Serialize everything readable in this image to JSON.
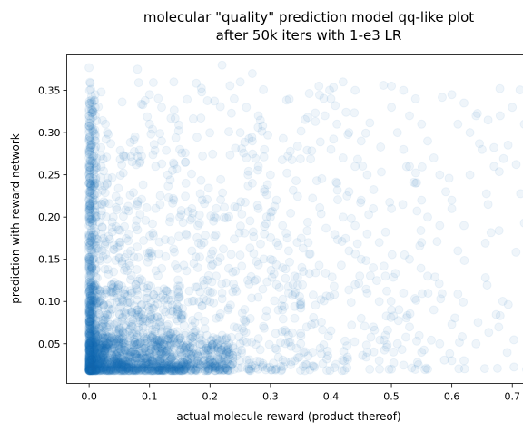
{
  "chart_data": {
    "type": "scatter",
    "title_lines": [
      "molecular \"quality\" prediction model qq-like plot",
      "after 50k iters with 1-e3 LR"
    ],
    "xlabel": "actual molecule reward (product thereof)",
    "ylabel": "prediction with reward network",
    "xlim": [
      -0.037,
      0.765
    ],
    "ylim": [
      0.003,
      0.392
    ],
    "x_ticks": [
      0.0,
      0.1,
      0.2,
      0.3,
      0.4,
      0.5,
      0.6,
      0.7
    ],
    "x_tick_labels": [
      "0.0",
      "0.1",
      "0.2",
      "0.3",
      "0.4",
      "0.5",
      "0.6",
      "0.7"
    ],
    "y_ticks": [
      0.05,
      0.1,
      0.15,
      0.2,
      0.25,
      0.3,
      0.35
    ],
    "y_tick_labels": [
      "0.05",
      "0.10",
      "0.15",
      "0.20",
      "0.25",
      "0.30",
      "0.35"
    ],
    "grid": false,
    "marker_color": "#1f77b4",
    "marker_alpha": 0.07,
    "points": [
      [
        0.0,
        0.377
      ],
      [
        0.0,
        0.32
      ],
      [
        0.0,
        0.3
      ],
      [
        0.0,
        0.29
      ],
      [
        0.0,
        0.28
      ],
      [
        0.0,
        0.27
      ],
      [
        0.0,
        0.26
      ],
      [
        0.0,
        0.25
      ],
      [
        0.0,
        0.24
      ],
      [
        0.0,
        0.23
      ],
      [
        0.0,
        0.22
      ],
      [
        0.0,
        0.21
      ],
      [
        0.0,
        0.2
      ],
      [
        0.0,
        0.19
      ],
      [
        0.0,
        0.18
      ],
      [
        0.0,
        0.17
      ],
      [
        0.0,
        0.16
      ],
      [
        0.0,
        0.15
      ],
      [
        0.0,
        0.14
      ],
      [
        0.0,
        0.13
      ],
      [
        0.0,
        0.12
      ],
      [
        0.0,
        0.11
      ],
      [
        0.0,
        0.1
      ],
      [
        0.0,
        0.09
      ],
      [
        0.0,
        0.08
      ],
      [
        0.0,
        0.07
      ],
      [
        0.0,
        0.06
      ],
      [
        0.0,
        0.05
      ],
      [
        0.01,
        0.345
      ],
      [
        0.01,
        0.33
      ],
      [
        0.02,
        0.348
      ],
      [
        0.03,
        0.3
      ],
      [
        0.02,
        0.26
      ],
      [
        0.03,
        0.24
      ],
      [
        0.01,
        0.22
      ],
      [
        0.04,
        0.2
      ],
      [
        0.02,
        0.18
      ],
      [
        0.05,
        0.17
      ],
      [
        0.03,
        0.15
      ],
      [
        0.06,
        0.14
      ],
      [
        0.04,
        0.12
      ],
      [
        0.07,
        0.11
      ],
      [
        0.05,
        0.1
      ],
      [
        0.08,
        0.09
      ],
      [
        0.06,
        0.085
      ],
      [
        0.09,
        0.08
      ],
      [
        0.1,
        0.075
      ],
      [
        0.11,
        0.07
      ],
      [
        0.12,
        0.065
      ],
      [
        0.13,
        0.06
      ],
      [
        0.14,
        0.055
      ],
      [
        0.15,
        0.05
      ],
      [
        0.16,
        0.045
      ],
      [
        0.17,
        0.04
      ],
      [
        0.18,
        0.035
      ],
      [
        0.19,
        0.03
      ],
      [
        0.2,
        0.025
      ],
      [
        0.22,
        0.02
      ],
      [
        0.08,
        0.375
      ],
      [
        0.1,
        0.345
      ],
      [
        0.12,
        0.33
      ],
      [
        0.14,
        0.36
      ],
      [
        0.1,
        0.31
      ],
      [
        0.12,
        0.29
      ],
      [
        0.15,
        0.28
      ],
      [
        0.11,
        0.26
      ],
      [
        0.13,
        0.25
      ],
      [
        0.16,
        0.24
      ],
      [
        0.14,
        0.22
      ],
      [
        0.17,
        0.21
      ],
      [
        0.15,
        0.2
      ],
      [
        0.18,
        0.19
      ],
      [
        0.16,
        0.18
      ],
      [
        0.19,
        0.17
      ],
      [
        0.17,
        0.16
      ],
      [
        0.2,
        0.15
      ],
      [
        0.18,
        0.14
      ],
      [
        0.21,
        0.13
      ],
      [
        0.19,
        0.12
      ],
      [
        0.22,
        0.11
      ],
      [
        0.2,
        0.1
      ],
      [
        0.23,
        0.09
      ],
      [
        0.21,
        0.08
      ],
      [
        0.24,
        0.07
      ],
      [
        0.22,
        0.06
      ],
      [
        0.25,
        0.05
      ],
      [
        0.23,
        0.04
      ],
      [
        0.22,
        0.38
      ],
      [
        0.25,
        0.36
      ],
      [
        0.27,
        0.37
      ],
      [
        0.24,
        0.34
      ],
      [
        0.26,
        0.33
      ],
      [
        0.28,
        0.32
      ],
      [
        0.25,
        0.3
      ],
      [
        0.27,
        0.29
      ],
      [
        0.29,
        0.28
      ],
      [
        0.26,
        0.27
      ],
      [
        0.28,
        0.26
      ],
      [
        0.3,
        0.25
      ],
      [
        0.27,
        0.24
      ],
      [
        0.29,
        0.23
      ],
      [
        0.31,
        0.22
      ],
      [
        0.28,
        0.21
      ],
      [
        0.3,
        0.2
      ],
      [
        0.32,
        0.19
      ],
      [
        0.29,
        0.18
      ],
      [
        0.31,
        0.17
      ],
      [
        0.33,
        0.16
      ],
      [
        0.3,
        0.15
      ],
      [
        0.32,
        0.14
      ],
      [
        0.34,
        0.13
      ],
      [
        0.31,
        0.12
      ],
      [
        0.33,
        0.11
      ],
      [
        0.35,
        0.1
      ],
      [
        0.32,
        0.09
      ],
      [
        0.34,
        0.08
      ],
      [
        0.36,
        0.07
      ],
      [
        0.33,
        0.06
      ],
      [
        0.35,
        0.05
      ],
      [
        0.37,
        0.04
      ],
      [
        0.34,
        0.03
      ],
      [
        0.36,
        0.025
      ],
      [
        0.38,
        0.355
      ],
      [
        0.4,
        0.34
      ],
      [
        0.42,
        0.36
      ],
      [
        0.44,
        0.35
      ],
      [
        0.39,
        0.32
      ],
      [
        0.41,
        0.31
      ],
      [
        0.43,
        0.3
      ],
      [
        0.45,
        0.29
      ],
      [
        0.4,
        0.28
      ],
      [
        0.42,
        0.27
      ],
      [
        0.44,
        0.26
      ],
      [
        0.46,
        0.25
      ],
      [
        0.41,
        0.24
      ],
      [
        0.43,
        0.23
      ],
      [
        0.45,
        0.22
      ],
      [
        0.47,
        0.21
      ],
      [
        0.42,
        0.2
      ],
      [
        0.44,
        0.19
      ],
      [
        0.46,
        0.18
      ],
      [
        0.48,
        0.17
      ],
      [
        0.43,
        0.16
      ],
      [
        0.45,
        0.15
      ],
      [
        0.47,
        0.14
      ],
      [
        0.49,
        0.13
      ],
      [
        0.44,
        0.12
      ],
      [
        0.46,
        0.11
      ],
      [
        0.48,
        0.1
      ],
      [
        0.5,
        0.09
      ],
      [
        0.45,
        0.08
      ],
      [
        0.47,
        0.07
      ],
      [
        0.49,
        0.06
      ],
      [
        0.51,
        0.05
      ],
      [
        0.46,
        0.04
      ],
      [
        0.48,
        0.03
      ],
      [
        0.5,
        0.02
      ],
      [
        0.5,
        0.355
      ],
      [
        0.52,
        0.35
      ],
      [
        0.54,
        0.34
      ],
      [
        0.5,
        0.33
      ],
      [
        0.53,
        0.32
      ],
      [
        0.55,
        0.31
      ],
      [
        0.51,
        0.3
      ],
      [
        0.56,
        0.29
      ],
      [
        0.52,
        0.28
      ],
      [
        0.57,
        0.27
      ],
      [
        0.53,
        0.26
      ],
      [
        0.58,
        0.25
      ],
      [
        0.54,
        0.24
      ],
      [
        0.59,
        0.23
      ],
      [
        0.55,
        0.22
      ],
      [
        0.6,
        0.21
      ],
      [
        0.56,
        0.2
      ],
      [
        0.58,
        0.19
      ],
      [
        0.55,
        0.17
      ],
      [
        0.53,
        0.15
      ],
      [
        0.56,
        0.13
      ],
      [
        0.52,
        0.11
      ],
      [
        0.57,
        0.09
      ],
      [
        0.53,
        0.07
      ],
      [
        0.58,
        0.05
      ],
      [
        0.55,
        0.04
      ],
      [
        0.6,
        0.03
      ],
      [
        0.56,
        0.02
      ],
      [
        0.6,
        0.345
      ],
      [
        0.62,
        0.335
      ],
      [
        0.64,
        0.32
      ],
      [
        0.61,
        0.31
      ],
      [
        0.63,
        0.3
      ],
      [
        0.66,
        0.315
      ],
      [
        0.68,
        0.32
      ],
      [
        0.7,
        0.33
      ],
      [
        0.73,
        0.325
      ],
      [
        0.72,
        0.31
      ],
      [
        0.65,
        0.28
      ],
      [
        0.67,
        0.26
      ],
      [
        0.63,
        0.25
      ],
      [
        0.6,
        0.22
      ],
      [
        0.62,
        0.19
      ],
      [
        0.72,
        0.193
      ],
      [
        0.61,
        0.16
      ],
      [
        0.6,
        0.073
      ],
      [
        0.64,
        0.05
      ],
      [
        0.62,
        0.03
      ]
    ],
    "dense_clusters": [
      {
        "x_range": [
          0.0,
          0.24
        ],
        "y_range": [
          0.018,
          0.06
        ],
        "count": 900
      },
      {
        "x_range": [
          0.0,
          0.16
        ],
        "y_range": [
          0.018,
          0.12
        ],
        "count": 500
      },
      {
        "x_range": [
          0.0,
          0.012
        ],
        "y_range": [
          0.018,
          0.34
        ],
        "count": 350
      },
      {
        "x_range": [
          0.0,
          0.35
        ],
        "y_range": [
          0.018,
          0.3
        ],
        "count": 650
      },
      {
        "x_range": [
          0.0,
          0.56
        ],
        "y_range": [
          0.018,
          0.36
        ],
        "count": 420
      },
      {
        "x_range": [
          0.35,
          0.73
        ],
        "y_range": [
          0.018,
          0.36
        ],
        "count": 140
      }
    ]
  }
}
